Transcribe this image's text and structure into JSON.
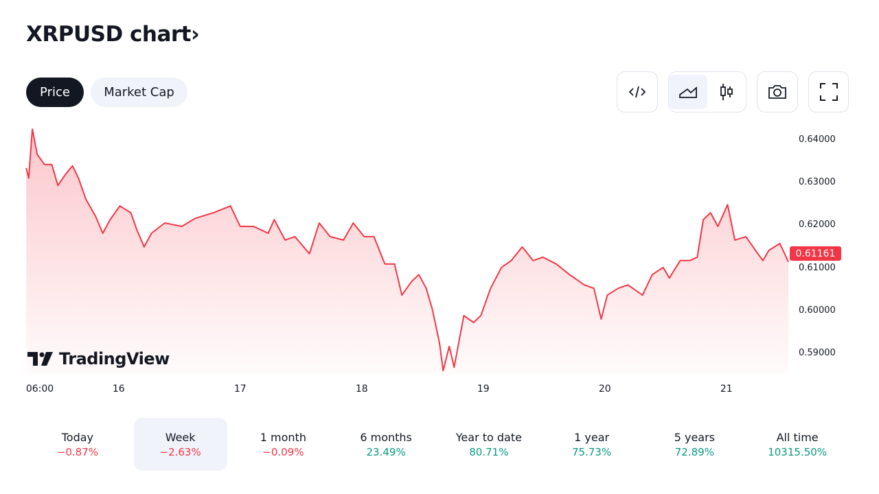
{
  "header": {
    "title": "XRPUSD chart",
    "chevron": "›"
  },
  "tabs": [
    {
      "label": "Price",
      "active": true
    },
    {
      "label": "Market Cap",
      "active": false
    }
  ],
  "toolbar": {
    "icons": [
      "embed-code-icon",
      "area-chart-icon",
      "candles-icon",
      "camera-icon",
      "fullscreen-icon"
    ],
    "selected": "area-chart-icon"
  },
  "logo": "TradingView",
  "colors": {
    "line": "#f23645",
    "negative": "#f23645",
    "positive": "#089981"
  },
  "chart_data": {
    "type": "area",
    "title": "XRPUSD",
    "last_price": "0.61161",
    "ylim": [
      0.585,
      0.643
    ],
    "y_ticks": [
      "0.64000",
      "0.63000",
      "0.62000",
      "0.61000",
      "0.60000",
      "0.59000"
    ],
    "x_ticks": [
      {
        "label": "06:00",
        "day": 15.25
      },
      {
        "label": "16",
        "day": 16
      },
      {
        "label": "17",
        "day": 17
      },
      {
        "label": "18",
        "day": 18
      },
      {
        "label": "19",
        "day": 19
      },
      {
        "label": "20",
        "day": 20
      },
      {
        "label": "21",
        "day": 21
      }
    ],
    "points": [
      [
        15.24,
        0.6336
      ],
      [
        15.26,
        0.6312
      ],
      [
        15.29,
        0.6427
      ],
      [
        15.33,
        0.6368
      ],
      [
        15.39,
        0.6344
      ],
      [
        15.45,
        0.6344
      ],
      [
        15.5,
        0.6295
      ],
      [
        15.56,
        0.632
      ],
      [
        15.62,
        0.6341
      ],
      [
        15.67,
        0.6312
      ],
      [
        15.73,
        0.6263
      ],
      [
        15.81,
        0.6223
      ],
      [
        15.87,
        0.6183
      ],
      [
        15.93,
        0.6215
      ],
      [
        16.01,
        0.6247
      ],
      [
        16.1,
        0.6231
      ],
      [
        16.15,
        0.6191
      ],
      [
        16.21,
        0.6151
      ],
      [
        16.27,
        0.6183
      ],
      [
        16.38,
        0.6207
      ],
      [
        16.52,
        0.6199
      ],
      [
        16.63,
        0.6218
      ],
      [
        16.78,
        0.6231
      ],
      [
        16.92,
        0.6247
      ],
      [
        17.0,
        0.6199
      ],
      [
        17.11,
        0.6199
      ],
      [
        17.23,
        0.6183
      ],
      [
        17.28,
        0.6215
      ],
      [
        17.37,
        0.6167
      ],
      [
        17.45,
        0.6175
      ],
      [
        17.57,
        0.6135
      ],
      [
        17.65,
        0.6207
      ],
      [
        17.74,
        0.6175
      ],
      [
        17.85,
        0.6167
      ],
      [
        17.93,
        0.6207
      ],
      [
        18.02,
        0.6175
      ],
      [
        18.1,
        0.6175
      ],
      [
        18.19,
        0.6111
      ],
      [
        18.27,
        0.6111
      ],
      [
        18.33,
        0.6038
      ],
      [
        18.41,
        0.607
      ],
      [
        18.47,
        0.6086
      ],
      [
        18.53,
        0.6054
      ],
      [
        18.58,
        0.6006
      ],
      [
        18.64,
        0.5926
      ],
      [
        18.67,
        0.5861
      ],
      [
        18.72,
        0.5918
      ],
      [
        18.76,
        0.5869
      ],
      [
        18.84,
        0.599
      ],
      [
        18.92,
        0.5974
      ],
      [
        18.98,
        0.599
      ],
      [
        19.06,
        0.6054
      ],
      [
        19.15,
        0.6103
      ],
      [
        19.23,
        0.6119
      ],
      [
        19.32,
        0.6151
      ],
      [
        19.41,
        0.6119
      ],
      [
        19.49,
        0.6127
      ],
      [
        19.6,
        0.6111
      ],
      [
        19.71,
        0.6086
      ],
      [
        19.83,
        0.6062
      ],
      [
        19.91,
        0.6054
      ],
      [
        19.97,
        0.5982
      ],
      [
        20.02,
        0.6038
      ],
      [
        20.11,
        0.6054
      ],
      [
        20.19,
        0.6062
      ],
      [
        20.31,
        0.6038
      ],
      [
        20.39,
        0.6086
      ],
      [
        20.48,
        0.6103
      ],
      [
        20.53,
        0.6078
      ],
      [
        20.62,
        0.6119
      ],
      [
        20.7,
        0.6119
      ],
      [
        20.76,
        0.6127
      ],
      [
        20.81,
        0.6215
      ],
      [
        20.87,
        0.6231
      ],
      [
        20.93,
        0.6199
      ],
      [
        21.01,
        0.625
      ],
      [
        21.07,
        0.6167
      ],
      [
        21.16,
        0.6175
      ],
      [
        21.24,
        0.6143
      ],
      [
        21.3,
        0.6119
      ],
      [
        21.35,
        0.6143
      ],
      [
        21.44,
        0.6159
      ],
      [
        21.51,
        0.61161
      ]
    ]
  },
  "periods": [
    {
      "label": "Today",
      "value": "−0.87%",
      "dir": "neg"
    },
    {
      "label": "Week",
      "value": "−2.63%",
      "dir": "neg",
      "selected": true
    },
    {
      "label": "1 month",
      "value": "−0.09%",
      "dir": "neg"
    },
    {
      "label": "6 months",
      "value": "23.49%",
      "dir": "pos"
    },
    {
      "label": "Year to date",
      "value": "80.71%",
      "dir": "pos"
    },
    {
      "label": "1 year",
      "value": "75.73%",
      "dir": "pos"
    },
    {
      "label": "5 years",
      "value": "72.89%",
      "dir": "pos"
    },
    {
      "label": "All time",
      "value": "10315.50%",
      "dir": "pos"
    }
  ]
}
